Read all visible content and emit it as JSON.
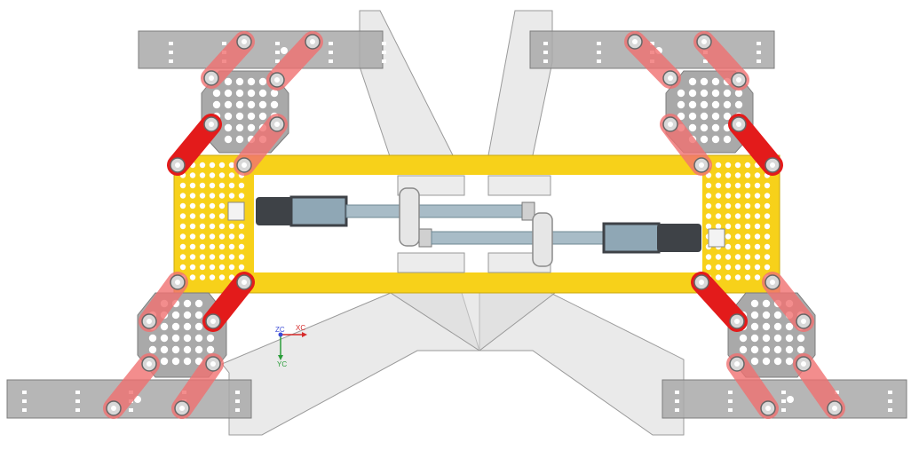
{
  "colors": {
    "background": "#ffffff",
    "frame_yellow": "#f7d11a",
    "frame_edge": "#c9a80d",
    "plate_gray": "#a9a9a9",
    "plate_edge": "#7c7c7c",
    "link_red": "#e31b1b",
    "link_translucent": "#f07070",
    "ghost_panel": "#d9d9d9",
    "actuator_dark": "#3e4247",
    "rod_blue": "#8fa7b5",
    "axis_x": "#d62a2a",
    "axis_y": "#2a9d3a",
    "axis_z": "#3b4bd6"
  },
  "csys": {
    "z_label": "ZC",
    "x_label": "XC",
    "y_label": "YC"
  },
  "parts": {
    "frame": "yellow-rectangular-frame",
    "hex_plates": [
      "hex-plate-top-left",
      "hex-plate-top-right",
      "hex-plate-bottom-left",
      "hex-plate-bottom-right"
    ],
    "end_bars": [
      "bar-top-left",
      "bar-top-right",
      "bar-bottom-left",
      "bar-bottom-right"
    ],
    "actuators": [
      "actuator-left",
      "actuator-right"
    ]
  }
}
